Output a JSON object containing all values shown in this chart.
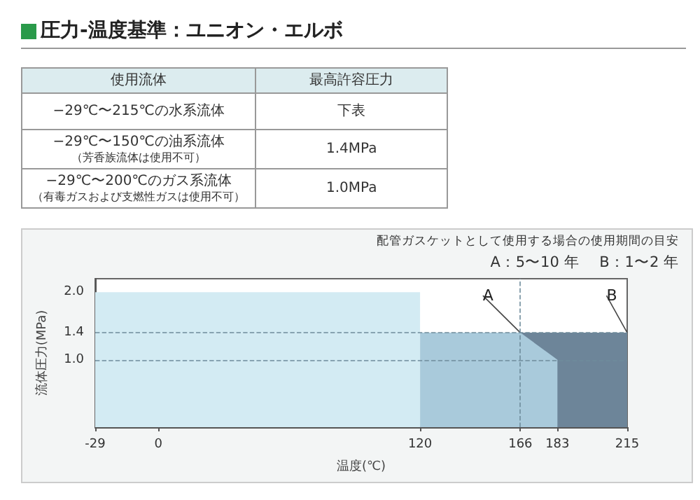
{
  "chart_data": [
    {
      "type": "other",
      "title": "圧力-温度基準：ユニオン・エルボ",
      "annotations": [
        "使用流体",
        "最高許容圧力",
        "−29℃〜215℃の水系流体",
        "下表",
        "−29℃〜150℃の油系流体（芳香族流体は使用不可）",
        "1.4MPa",
        "−29℃〜200℃のガス系流体（有毒ガスおよび支燃性ガスは使用不可）",
        "1.0MPa"
      ]
    },
    {
      "type": "area",
      "xlabel": "温度(℃)",
      "ylabel": "流体圧力(MPa)",
      "annotations": [
        "配管ガスケットとして使用する場合の使用期間の目安",
        "A：5〜10 年　 B：1〜2 年"
      ],
      "series": [
        {
          "color": "#d3ebf3",
          "x": [
            -29,
            120
          ],
          "values": [
            2.0,
            2.0
          ]
        },
        {
          "name": "B",
          "color": "#6d8599",
          "x": [
            166,
            215
          ],
          "values": [
            1.4,
            1.4
          ]
        },
        {
          "name": "A",
          "color": "#a9cadb",
          "x": [
            120,
            166,
            183
          ],
          "values": [
            1.4,
            1.4,
            1.0
          ]
        }
      ],
      "xlim": [
        -29,
        215
      ],
      "xticks": [
        -29,
        0,
        120,
        166,
        183,
        215
      ],
      "ylim": [
        0,
        2.2
      ],
      "yticks": [
        {
          "value": 1.0,
          "label": "1.0"
        },
        {
          "value": 1.4,
          "label": "1.4"
        },
        {
          "value": 2.0,
          "label": "2.0"
        }
      ],
      "ref_lines": [
        {
          "axis": "y",
          "value": 1.4,
          "color": "#6f8c9c",
          "line_style": "dashed"
        },
        {
          "axis": "y",
          "value": 1.0,
          "color": "#6f8c9c",
          "line_style": "dashed"
        },
        {
          "axis": "x",
          "value": 166,
          "color": "#6f8c9c",
          "line_style": "dashed"
        }
      ],
      "grid": false,
      "legend": false
    }
  ]
}
